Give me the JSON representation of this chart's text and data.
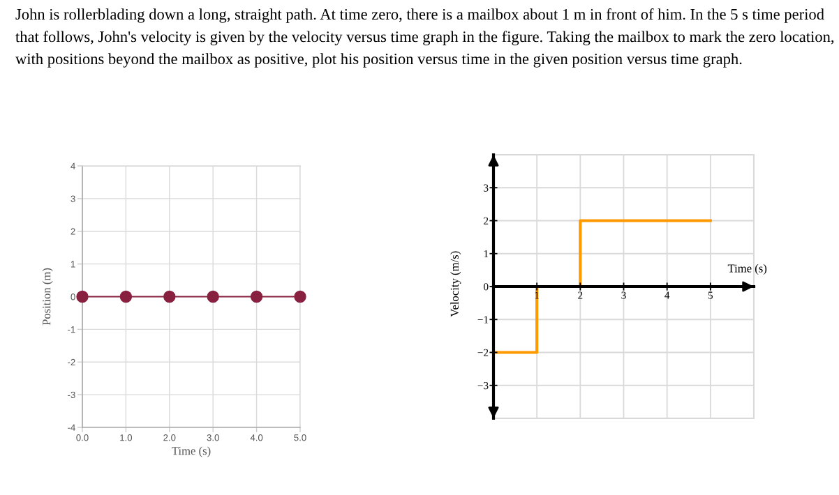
{
  "chart_data": [
    {
      "type": "line",
      "title": "John is rollerblading down a long, straight path. At time zero, there is a mailbox about 1 m in front of him. In the 5 s time period that follows, John's velocity is given by the velocity versus time graph in the figure. Taking the mailbox to mark the zero location, with positions beyond the mailbox as positive, plot his position versus time in the given position versus time graph.",
      "xlabel": "Time (s)",
      "ylabel": "Position (m)",
      "x": [
        0,
        1,
        2,
        3,
        4,
        5
      ],
      "series": [
        {
          "color": "#88213f",
          "values": [
            0,
            0,
            0,
            0,
            0,
            0
          ]
        }
      ],
      "xlim": [
        0,
        5
      ],
      "xticks": [
        {
          "value": 0,
          "label": "0.0"
        },
        {
          "value": 1,
          "label": "1.0"
        },
        {
          "value": 2,
          "label": "2.0"
        },
        {
          "value": 3,
          "label": "3.0"
        },
        {
          "value": 4,
          "label": "4.0"
        },
        {
          "value": 5,
          "label": "5.0"
        }
      ],
      "ylim": [
        -4,
        4
      ],
      "yticks": [
        -4,
        -3,
        -2,
        -1,
        0,
        1,
        2,
        3,
        4
      ],
      "grid": true,
      "marker": "circle",
      "line_style": "solid"
    },
    {
      "type": "step",
      "xlabel": "Time (s)",
      "ylabel": "Velocity (m/s)",
      "x": [
        0,
        1,
        2,
        5
      ],
      "series": [
        {
          "color": "#ff9900",
          "values": [
            -2,
            0,
            2,
            2
          ]
        }
      ],
      "xlim": [
        0,
        6
      ],
      "xticks": [
        1,
        2,
        3,
        4,
        5
      ],
      "ylim": [
        -4,
        4
      ],
      "yticks": [
        {
          "value": -3,
          "label": "−3"
        },
        {
          "value": -2,
          "label": "−2"
        },
        {
          "value": -1,
          "label": "−1"
        },
        0,
        1,
        2,
        3
      ],
      "grid": true,
      "line_style": "solid"
    }
  ]
}
